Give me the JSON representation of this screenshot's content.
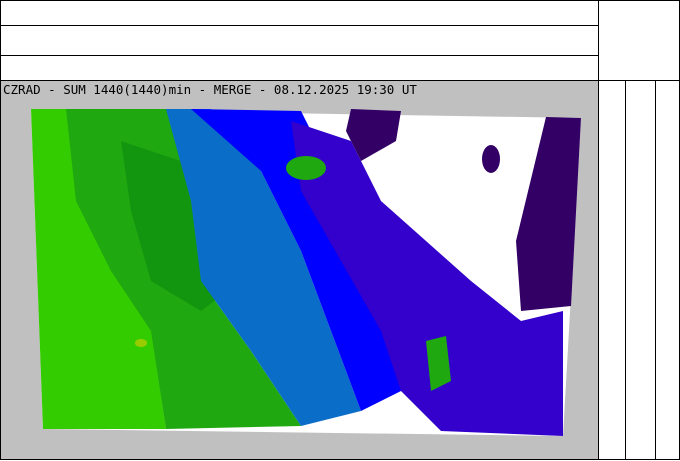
{
  "map": {
    "title": "CZRAD - SUM 1440(1440)min - MERGE - 08.12.2025 19:30 UT",
    "colors": {
      "background": "#c0c0c0",
      "lightest_green": "#33cc00",
      "green": "#20a810",
      "dark_green": "#13960f",
      "teal_blue": "#0a6ec8",
      "blue": "#0000ff",
      "indigo": "#3300cc",
      "dark_purple": "#330066",
      "yellow_green": "#99cc00",
      "no_data": "#ffffff"
    }
  }
}
